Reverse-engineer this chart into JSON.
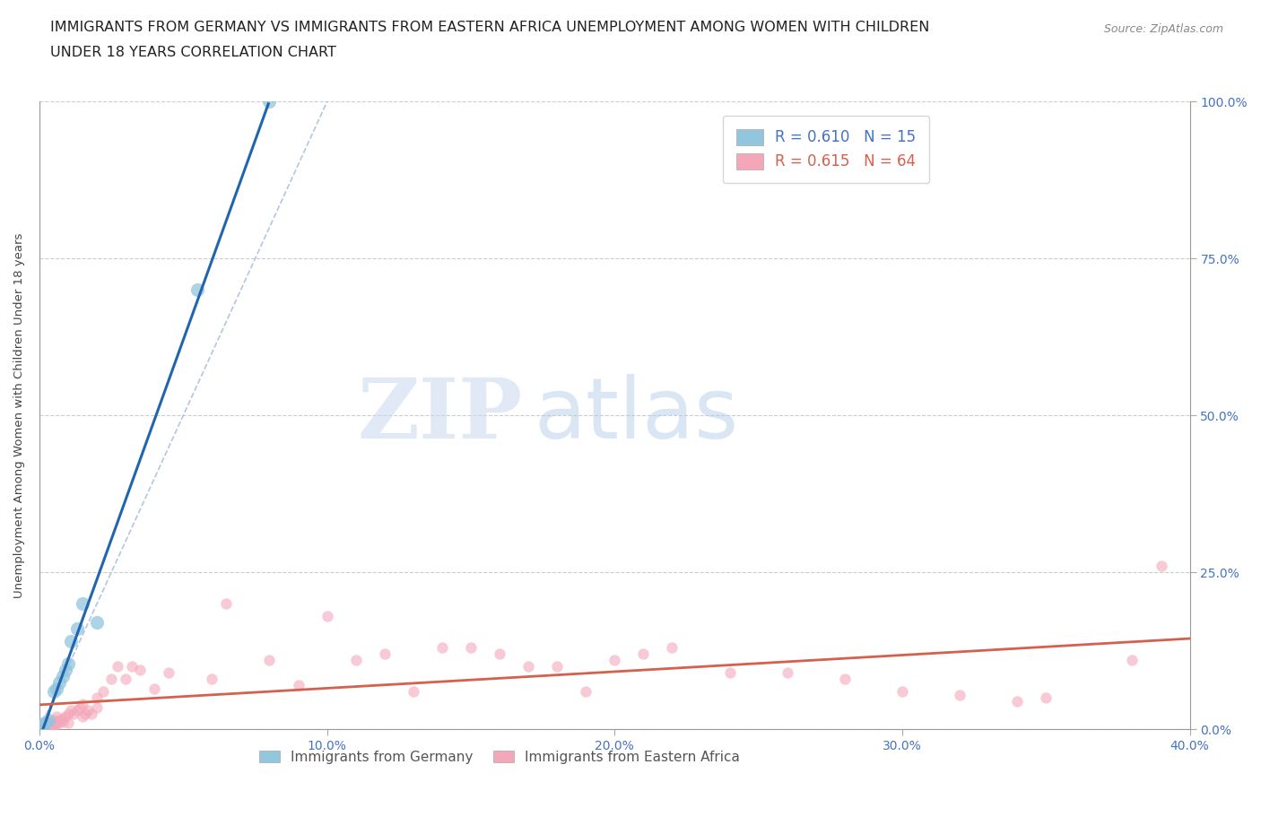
{
  "title_line1": "IMMIGRANTS FROM GERMANY VS IMMIGRANTS FROM EASTERN AFRICA UNEMPLOYMENT AMONG WOMEN WITH CHILDREN",
  "title_line2": "UNDER 18 YEARS CORRELATION CHART",
  "source": "Source: ZipAtlas.com",
  "ylabel": "Unemployment Among Women with Children Under 18 years",
  "xlim": [
    0.0,
    0.4
  ],
  "ylim": [
    0.0,
    1.0
  ],
  "xticks": [
    0.0,
    0.1,
    0.2,
    0.3,
    0.4
  ],
  "yticks": [
    0.0,
    0.25,
    0.5,
    0.75,
    1.0
  ],
  "ytick_labels": [
    "0.0%",
    "25.0%",
    "50.0%",
    "75.0%",
    "100.0%"
  ],
  "xtick_labels": [
    "0.0%",
    "10.0%",
    "20.0%",
    "30.0%",
    "40.0%"
  ],
  "germany_R": 0.61,
  "germany_N": 15,
  "eastern_africa_R": 0.615,
  "eastern_africa_N": 64,
  "germany_color": "#92c5de",
  "eastern_africa_color": "#f4a7b9",
  "germany_line_color": "#2166ac",
  "eastern_africa_line_color": "#d6604d",
  "legend_color_germany": "#4472C4",
  "legend_color_eastern": "#d6604d",
  "germany_x": [
    0.001,
    0.002,
    0.003,
    0.005,
    0.006,
    0.007,
    0.008,
    0.009,
    0.01,
    0.011,
    0.013,
    0.015,
    0.02,
    0.055,
    0.08
  ],
  "germany_y": [
    0.005,
    0.01,
    0.015,
    0.06,
    0.065,
    0.075,
    0.085,
    0.095,
    0.105,
    0.14,
    0.16,
    0.2,
    0.17,
    0.7,
    1.0
  ],
  "eastern_africa_x": [
    0.001,
    0.002,
    0.002,
    0.003,
    0.003,
    0.004,
    0.004,
    0.005,
    0.005,
    0.005,
    0.006,
    0.006,
    0.007,
    0.007,
    0.008,
    0.008,
    0.009,
    0.01,
    0.01,
    0.011,
    0.012,
    0.013,
    0.014,
    0.015,
    0.015,
    0.016,
    0.017,
    0.018,
    0.02,
    0.02,
    0.022,
    0.025,
    0.027,
    0.03,
    0.032,
    0.035,
    0.04,
    0.045,
    0.06,
    0.065,
    0.08,
    0.09,
    0.1,
    0.11,
    0.12,
    0.13,
    0.14,
    0.15,
    0.16,
    0.17,
    0.18,
    0.19,
    0.2,
    0.21,
    0.22,
    0.24,
    0.26,
    0.28,
    0.3,
    0.32,
    0.34,
    0.35,
    0.38,
    0.39
  ],
  "eastern_africa_y": [
    0.005,
    0.008,
    0.012,
    0.005,
    0.01,
    0.008,
    0.012,
    0.005,
    0.008,
    0.015,
    0.01,
    0.02,
    0.01,
    0.015,
    0.012,
    0.018,
    0.02,
    0.01,
    0.025,
    0.03,
    0.025,
    0.03,
    0.035,
    0.02,
    0.04,
    0.025,
    0.03,
    0.025,
    0.035,
    0.05,
    0.06,
    0.08,
    0.1,
    0.08,
    0.1,
    0.095,
    0.065,
    0.09,
    0.08,
    0.2,
    0.11,
    0.07,
    0.18,
    0.11,
    0.12,
    0.06,
    0.13,
    0.13,
    0.12,
    0.1,
    0.1,
    0.06,
    0.11,
    0.12,
    0.13,
    0.09,
    0.09,
    0.08,
    0.06,
    0.055,
    0.045,
    0.05,
    0.11,
    0.26
  ],
  "watermark_ZIP": "ZIP",
  "watermark_atlas": "atlas",
  "background_color": "#ffffff",
  "grid_color": "#cccccc",
  "title_fontsize": 11.5,
  "tick_label_color": "#4472C4",
  "scatter_size_germany": 120,
  "scatter_size_eastern": 80,
  "scatter_alpha_germany": 0.75,
  "scatter_alpha_eastern": 0.6,
  "diag_line_color": "#aaaacc",
  "diag_line_style": "--"
}
